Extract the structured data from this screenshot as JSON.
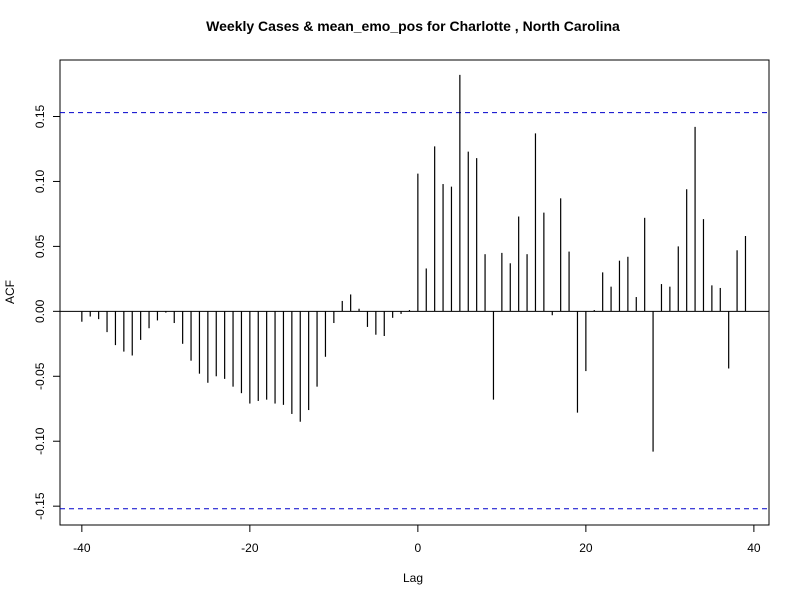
{
  "chart_data": {
    "type": "bar",
    "title": "Weekly Cases & mean_emo_pos for Charlotte , North Carolina",
    "xlabel": "Lag",
    "ylabel": "ACF",
    "xlim": [
      -42.6,
      41.8
    ],
    "ylim": [
      -0.1645,
      0.1935
    ],
    "x_ticks": [
      -40,
      -20,
      0,
      20,
      40
    ],
    "x_tick_labels": [
      "-40",
      "-20",
      "0",
      "20",
      "40"
    ],
    "y_ticks": [
      -0.15,
      -0.1,
      -0.05,
      0.0,
      0.05,
      0.1,
      0.15
    ],
    "y_tick_labels": [
      "-0.15",
      "-0.10",
      "-0.05",
      "0.00",
      "0.05",
      "0.10",
      "0.15"
    ],
    "confidence_bounds": [
      0.153,
      -0.152
    ],
    "bound_color": "#0000cc",
    "bar_color": "#000000",
    "x": [
      -40,
      -39,
      -38,
      -37,
      -36,
      -35,
      -34,
      -33,
      -32,
      -31,
      -30,
      -29,
      -28,
      -27,
      -26,
      -25,
      -24,
      -23,
      -22,
      -21,
      -20,
      -19,
      -18,
      -17,
      -16,
      -15,
      -14,
      -13,
      -12,
      -11,
      -10,
      -9,
      -8,
      -7,
      -6,
      -5,
      -4,
      -3,
      -2,
      -1,
      0,
      1,
      2,
      3,
      4,
      5,
      6,
      7,
      8,
      9,
      10,
      11,
      12,
      13,
      14,
      15,
      16,
      17,
      18,
      19,
      20,
      21,
      22,
      23,
      24,
      25,
      26,
      27,
      28,
      29,
      30,
      31,
      32,
      33,
      34,
      35,
      36,
      37,
      38,
      39
    ],
    "values": [
      -0.008,
      -0.004,
      -0.006,
      -0.016,
      -0.026,
      -0.031,
      -0.034,
      -0.022,
      -0.013,
      -0.007,
      -0.001,
      -0.009,
      -0.025,
      -0.038,
      -0.048,
      -0.055,
      -0.05,
      -0.052,
      -0.058,
      -0.063,
      -0.071,
      -0.069,
      -0.068,
      -0.071,
      -0.072,
      -0.079,
      -0.085,
      -0.076,
      -0.058,
      -0.035,
      -0.009,
      0.008,
      0.013,
      0.002,
      -0.012,
      -0.018,
      -0.019,
      -0.005,
      -0.002,
      0.001,
      0.106,
      0.033,
      0.127,
      0.098,
      0.096,
      0.182,
      0.123,
      0.118,
      0.044,
      -0.068,
      0.045,
      0.037,
      0.073,
      0.044,
      0.137,
      0.076,
      -0.003,
      0.087,
      0.046,
      -0.078,
      -0.046,
      0.001,
      0.03,
      0.019,
      0.039,
      0.042,
      0.011,
      0.072,
      -0.108,
      0.021,
      0.019,
      0.05,
      0.094,
      0.142,
      0.071,
      0.02,
      0.018,
      -0.044,
      0.047,
      0.058
    ]
  }
}
